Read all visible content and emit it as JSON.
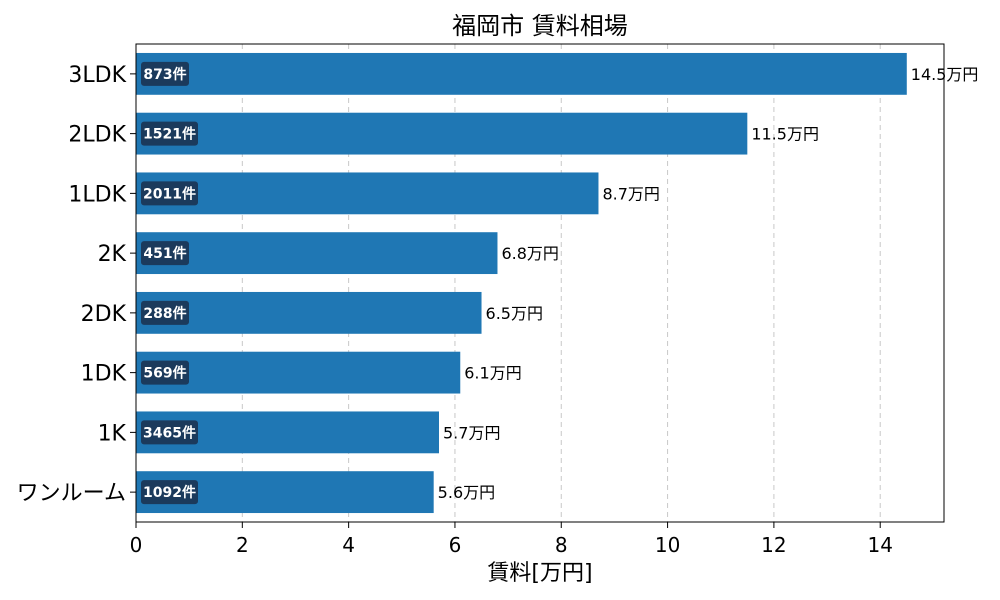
{
  "chart_data": {
    "type": "bar",
    "orientation": "horizontal",
    "title": "福岡市 賃料相場",
    "xlabel": "賃料[万円]",
    "ylabel": "",
    "xlim": [
      0,
      15.2
    ],
    "xticks": [
      "0",
      "2",
      "4",
      "6",
      "8",
      "10",
      "12",
      "14"
    ],
    "grid": "vertical-dashed",
    "bar_color": "#1f77b4",
    "count_badge_color": "#1b3a5c",
    "categories": [
      "3LDK",
      "2LDK",
      "1LDK",
      "2K",
      "2DK",
      "1DK",
      "1K",
      "ワンルーム"
    ],
    "values": [
      14.5,
      11.5,
      8.7,
      6.8,
      6.5,
      6.1,
      5.7,
      5.6
    ],
    "value_labels": [
      "14.5万円",
      "11.5万円",
      "8.7万円",
      "6.8万円",
      "6.5万円",
      "6.1万円",
      "5.7万円",
      "5.6万円"
    ],
    "count_labels": [
      "873件",
      "1521件",
      "2011件",
      "451件",
      "288件",
      "569件",
      "3465件",
      "1092件"
    ]
  }
}
